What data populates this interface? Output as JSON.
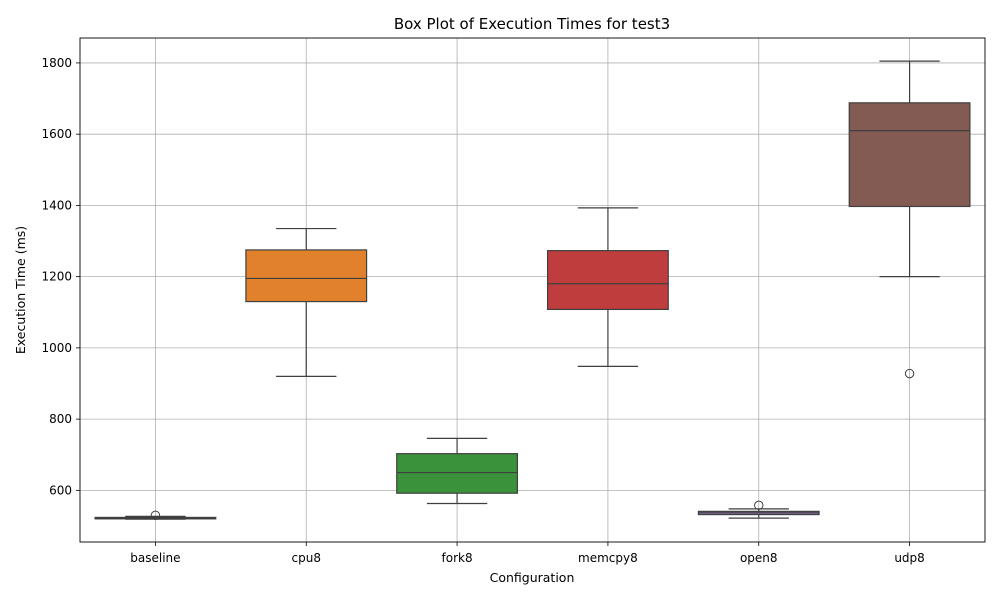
{
  "chart_data": {
    "type": "box",
    "title": "Box Plot of Execution Times for test3",
    "xlabel": "Configuration",
    "ylabel": "Execution Time (ms)",
    "ylim": [
      455,
      1870
    ],
    "yticks": [
      600,
      800,
      1000,
      1200,
      1400,
      1600,
      1800
    ],
    "grid": true,
    "categories": [
      "baseline",
      "cpu8",
      "fork8",
      "memcpy8",
      "open8",
      "udp8"
    ],
    "colors": [
      "#1f77b4",
      "#ff7f0e",
      "#2ca02c",
      "#d62728",
      "#9467bd",
      "#8c564b"
    ],
    "boxes": [
      {
        "category": "baseline",
        "whisker_low": 519,
        "q1": 520,
        "median": 522,
        "q3": 524,
        "whisker_high": 527,
        "outliers": [
          530
        ]
      },
      {
        "category": "cpu8",
        "whisker_low": 920,
        "q1": 1130,
        "median": 1195,
        "q3": 1275,
        "whisker_high": 1335,
        "outliers": []
      },
      {
        "category": "fork8",
        "whisker_low": 563,
        "q1": 592,
        "median": 650,
        "q3": 703,
        "whisker_high": 746,
        "outliers": []
      },
      {
        "category": "memcpy8",
        "whisker_low": 948,
        "q1": 1108,
        "median": 1180,
        "q3": 1273,
        "whisker_high": 1393,
        "outliers": []
      },
      {
        "category": "open8",
        "whisker_low": 522,
        "q1": 532,
        "median": 537,
        "q3": 541,
        "whisker_high": 548,
        "outliers": [
          558
        ]
      },
      {
        "category": "udp8",
        "whisker_low": 1200,
        "q1": 1397,
        "median": 1610,
        "q3": 1688,
        "whisker_high": 1805,
        "outliers": [
          928
        ]
      }
    ]
  }
}
